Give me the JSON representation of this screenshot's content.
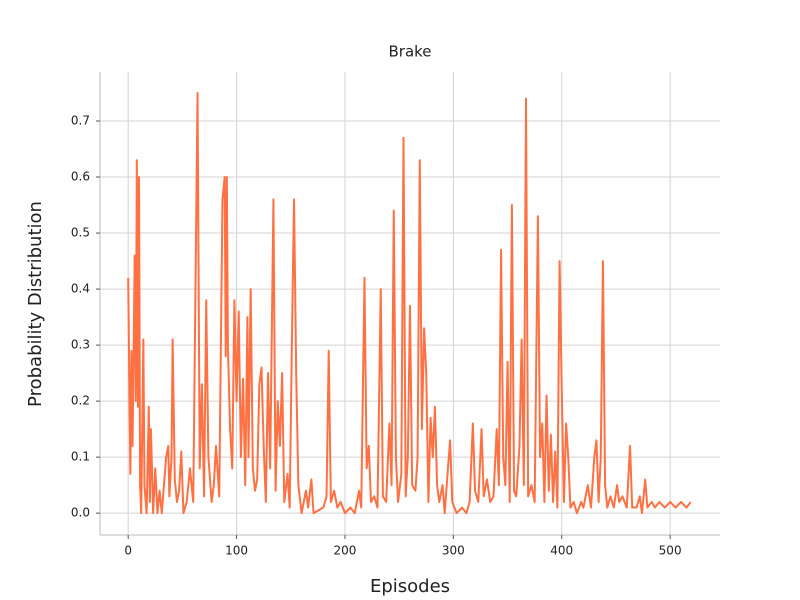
{
  "chart_data": {
    "type": "line",
    "title": "Brake",
    "xlabel": "Episodes",
    "ylabel": "Probability Distribution",
    "color": "#ff7043",
    "grid": true,
    "xlim": [
      -26,
      546
    ],
    "ylim": [
      -0.039,
      0.7875
    ],
    "xticks": [
      0,
      100,
      200,
      300,
      400,
      500
    ],
    "yticks": [
      {
        "value": 0,
        "label": "0.0"
      },
      {
        "value": 0.1,
        "label": "0.1"
      },
      {
        "value": 0.2,
        "label": "0.2"
      },
      {
        "value": 0.3,
        "label": "0.3"
      },
      {
        "value": 0.4,
        "label": "0.4"
      },
      {
        "value": 0.5,
        "label": "0.5"
      },
      {
        "value": 0.6,
        "label": "0.6"
      },
      {
        "value": 0.7,
        "label": "0.7"
      }
    ],
    "x": [
      0,
      2,
      3,
      4,
      6,
      7,
      8,
      9,
      10,
      11,
      12,
      14,
      15,
      17,
      19,
      20,
      21,
      23,
      25,
      27,
      29,
      31,
      33,
      35,
      37,
      38,
      40,
      41,
      43,
      45,
      47,
      49,
      51,
      54,
      57,
      60,
      64,
      66,
      68,
      70,
      72,
      74,
      77,
      79,
      81,
      84,
      87,
      89,
      90,
      91,
      92,
      94,
      96,
      98,
      100,
      102,
      104,
      106,
      108,
      110,
      111,
      113,
      115,
      117,
      119,
      121,
      123,
      125,
      127,
      129,
      131,
      134,
      136,
      138,
      140,
      142,
      144,
      147,
      149,
      151,
      153,
      155,
      157,
      160,
      164,
      166,
      169,
      171,
      180,
      183,
      185,
      187,
      190,
      193,
      196,
      200,
      205,
      209,
      213,
      215,
      218,
      220,
      222,
      224,
      227,
      230,
      233,
      235,
      238,
      241,
      243,
      245,
      247,
      249,
      252,
      254,
      256,
      258,
      260,
      262,
      265,
      267,
      269,
      271,
      273,
      275,
      277,
      279,
      281,
      283,
      285,
      287,
      290,
      292,
      295,
      297,
      299,
      303,
      308,
      312,
      315,
      318,
      320,
      323,
      326,
      328,
      331,
      334,
      337,
      340,
      342,
      344,
      346,
      348,
      350,
      352,
      354,
      356,
      358,
      361,
      363,
      365,
      367,
      369,
      372,
      375,
      378,
      380,
      382,
      384,
      386,
      388,
      390,
      392,
      394,
      396,
      398,
      400,
      402,
      404,
      406,
      408,
      411,
      414,
      418,
      420,
      424,
      427,
      430,
      432,
      434,
      436,
      438,
      440,
      442,
      445,
      448,
      451,
      453,
      456,
      460,
      463,
      465,
      469,
      472,
      474,
      477,
      479,
      483,
      486,
      490,
      495,
      500,
      505,
      510,
      515,
      519
    ],
    "values": [
      0.42,
      0.07,
      0.29,
      0.12,
      0.46,
      0.2,
      0.63,
      0.19,
      0.6,
      0.05,
      0,
      0.31,
      0.05,
      0,
      0.19,
      0.02,
      0.15,
      0,
      0.08,
      0,
      0.04,
      0,
      0.05,
      0.1,
      0.12,
      0.03,
      0.1,
      0.31,
      0.06,
      0.02,
      0.04,
      0.11,
      0,
      0.02,
      0.08,
      0.02,
      0.75,
      0.08,
      0.23,
      0.03,
      0.38,
      0.1,
      0.02,
      0.05,
      0.12,
      0.03,
      0.56,
      0.6,
      0.28,
      0.6,
      0.3,
      0.15,
      0.08,
      0.38,
      0.2,
      0.36,
      0.1,
      0.24,
      0.05,
      0.35,
      0.1,
      0.4,
      0.08,
      0.04,
      0.06,
      0.23,
      0.26,
      0.12,
      0.02,
      0.25,
      0.08,
      0.56,
      0.04,
      0.2,
      0.12,
      0.25,
      0.02,
      0.07,
      0.01,
      0.3,
      0.56,
      0.25,
      0.05,
      0,
      0.04,
      0.01,
      0.06,
      0,
      0.01,
      0.03,
      0.29,
      0.02,
      0.04,
      0.01,
      0.02,
      0,
      0.01,
      0,
      0.04,
      0.01,
      0.42,
      0.08,
      0.12,
      0.02,
      0.03,
      0.01,
      0.4,
      0.03,
      0.02,
      0.16,
      0.05,
      0.54,
      0.1,
      0.02,
      0.07,
      0.67,
      0.03,
      0.1,
      0.37,
      0.05,
      0.04,
      0.1,
      0.63,
      0.15,
      0.33,
      0.25,
      0.02,
      0.17,
      0.1,
      0.19,
      0.05,
      0.02,
      0.05,
      0,
      0.08,
      0.13,
      0.02,
      0,
      0.01,
      0,
      0.02,
      0.16,
      0.04,
      0.02,
      0.15,
      0.03,
      0.06,
      0.02,
      0.03,
      0.15,
      0.05,
      0.47,
      0.1,
      0.05,
      0.27,
      0.02,
      0.55,
      0.04,
      0.03,
      0.12,
      0.31,
      0.05,
      0.74,
      0.03,
      0.05,
      0.02,
      0.53,
      0.1,
      0.16,
      0.02,
      0.21,
      0.04,
      0.14,
      0.02,
      0.11,
      0.01,
      0.45,
      0.22,
      0.02,
      0.16,
      0.1,
      0.01,
      0.02,
      0,
      0.02,
      0.01,
      0.05,
      0.01,
      0.1,
      0.13,
      0.02,
      0.1,
      0.45,
      0.05,
      0.01,
      0.03,
      0.01,
      0.05,
      0.02,
      0.03,
      0.01,
      0.12,
      0.01,
      0.01,
      0.03,
      0,
      0.06,
      0.01,
      0.02,
      0.01,
      0.02,
      0.01,
      0.02,
      0.01,
      0.02,
      0.01,
      0.02
    ]
  }
}
